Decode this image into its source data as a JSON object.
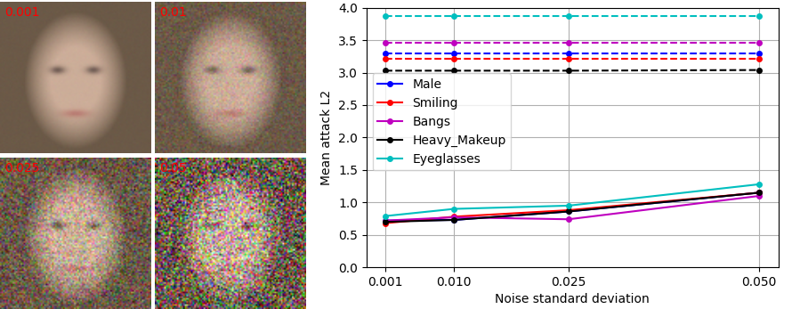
{
  "panels": {
    "labels": [
      "0.001",
      "0.01",
      "0.025",
      "0.05"
    ],
    "label_color": "#ff0000"
  },
  "chart_data": {
    "type": "line",
    "x_label": "Noise standard deviation",
    "y_label": "Mean attack L2",
    "x": [
      0.001,
      0.01,
      0.025,
      0.05
    ],
    "xlim": [
      -0.0015,
      0.0525
    ],
    "xticks": [
      0.001,
      {
        "value": 0.01,
        "label": "0.010"
      },
      0.025,
      {
        "value": 0.05,
        "label": "0.050"
      }
    ],
    "ylim": [
      0,
      4.0
    ],
    "yticks": [
      {
        "value": 0,
        "label": "0.0"
      },
      {
        "value": 0.5,
        "label": "0.5"
      },
      {
        "value": 1.0,
        "label": "1.0"
      },
      {
        "value": 1.5,
        "label": "1.5"
      },
      {
        "value": 2.0,
        "label": "2.0"
      },
      {
        "value": 2.5,
        "label": "2.5"
      },
      {
        "value": 3.0,
        "label": "3.0"
      },
      {
        "value": 3.5,
        "label": "3.5"
      },
      {
        "value": 4.0,
        "label": "4.0"
      }
    ],
    "grid": true,
    "legend": "center left",
    "marker": "o",
    "series": [
      {
        "name": "Male",
        "color": "#0000ff",
        "line_style": "solid",
        "values": [
          0.72,
          0.73,
          0.86,
          1.15
        ]
      },
      {
        "name": "Smiling",
        "color": "#ff0000",
        "line_style": "solid",
        "values": [
          0.68,
          0.78,
          0.88,
          1.15
        ]
      },
      {
        "name": "Bangs",
        "color": "#bf00bf",
        "line_style": "solid",
        "values": [
          0.72,
          0.77,
          0.74,
          1.1
        ]
      },
      {
        "name": "Heavy_Makeup",
        "color": "#000000",
        "line_style": "solid",
        "values": [
          0.7,
          0.73,
          0.86,
          1.15
        ]
      },
      {
        "name": "Eyeglasses",
        "color": "#00bfbf",
        "line_style": "solid",
        "values": [
          0.79,
          0.9,
          0.95,
          1.28
        ]
      },
      {
        "color": "#0000ff",
        "line_style": "dashed",
        "values": [
          3.29,
          3.29,
          3.29,
          3.29
        ]
      },
      {
        "color": "#ff0000",
        "line_style": "dashed",
        "values": [
          3.22,
          3.22,
          3.22,
          3.22
        ]
      },
      {
        "color": "#bf00bf",
        "line_style": "dashed",
        "values": [
          3.46,
          3.46,
          3.46,
          3.46
        ]
      },
      {
        "color": "#000000",
        "line_style": "dashed",
        "values": [
          3.03,
          3.03,
          3.03,
          3.04
        ]
      },
      {
        "color": "#00bfbf",
        "line_style": "dashed",
        "values": [
          3.87,
          3.87,
          3.87,
          3.87
        ]
      }
    ]
  }
}
